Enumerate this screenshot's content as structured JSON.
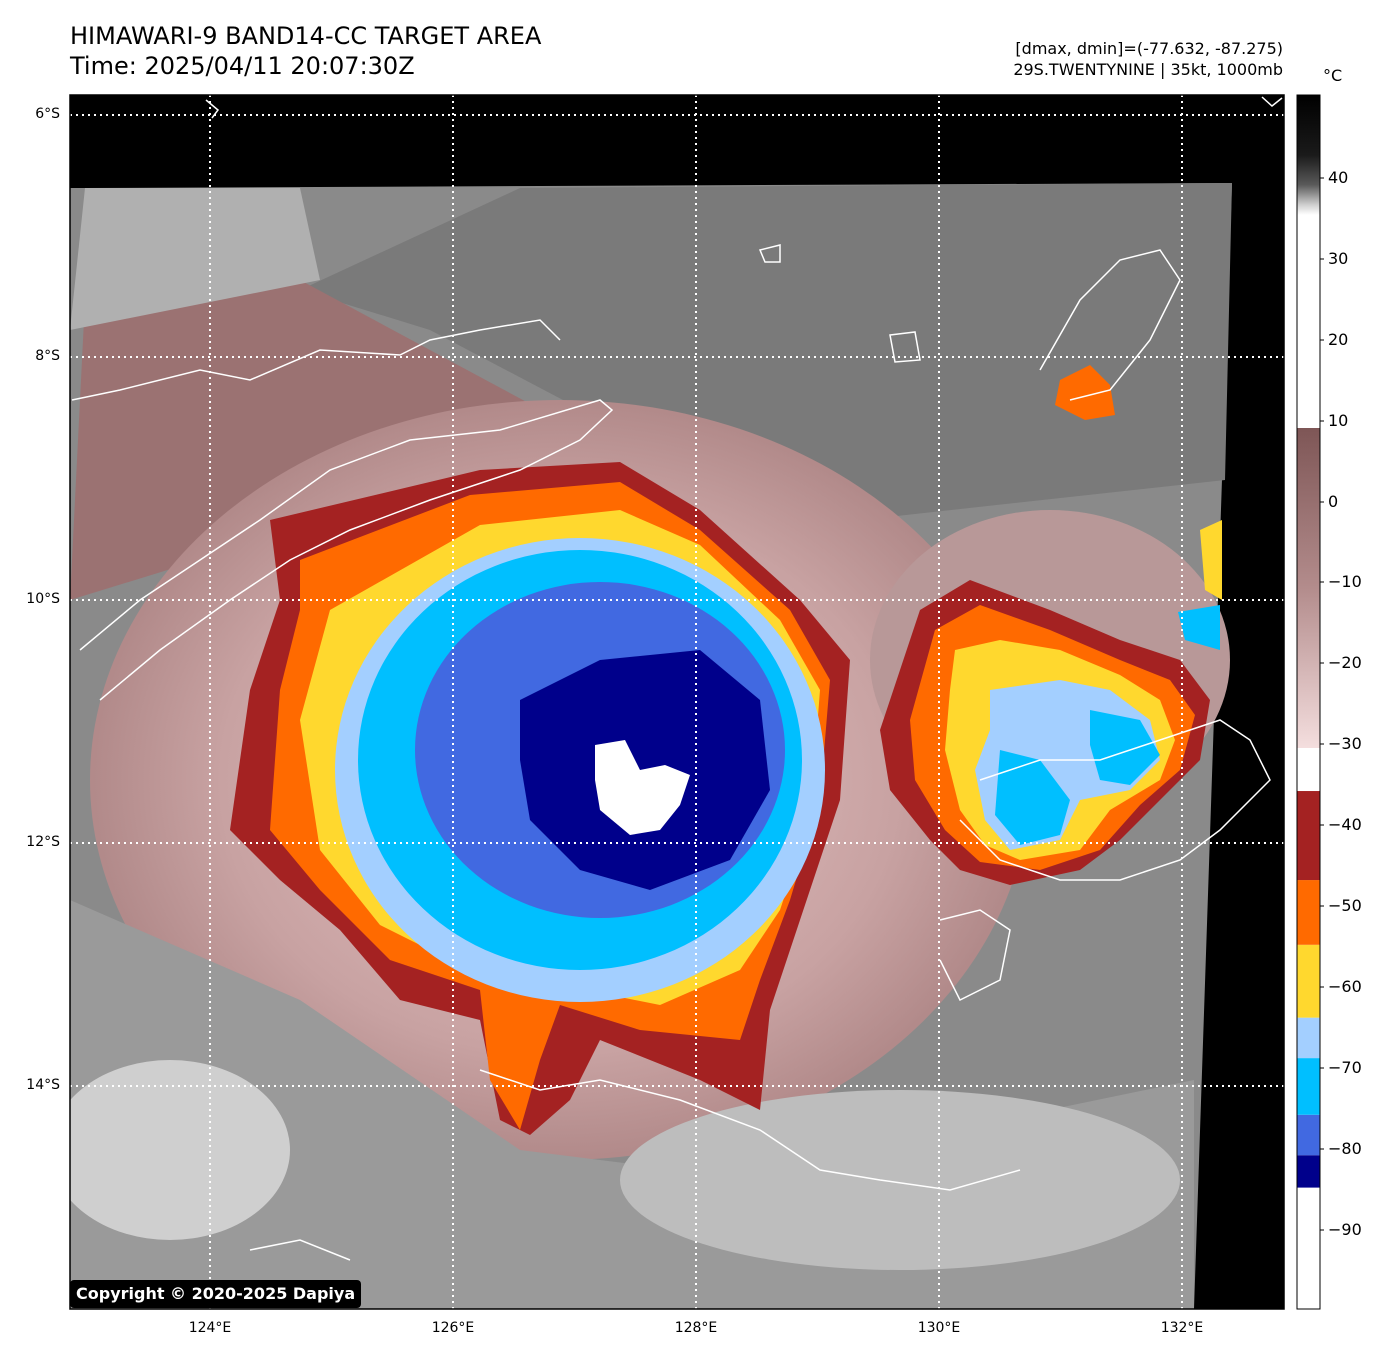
{
  "header": {
    "title_line1": "HIMAWARI-9 BAND14-CC TARGET AREA",
    "title_line2": "Time: 2025/04/11 20:07:30Z",
    "info_line1": "[dmax, dmin]=(-77.632, -87.275)",
    "info_line2": "29S.TWENTYNINE | 35kt, 1000mb"
  },
  "map": {
    "lat_labels": [
      "6°S",
      "8°S",
      "10°S",
      "12°S",
      "14°S"
    ],
    "lon_labels": [
      "124°E",
      "126°E",
      "128°E",
      "130°E",
      "132°E"
    ],
    "center_lon": 127.5,
    "center_lat": -11.4,
    "secondary_storm_lon": 130.9,
    "secondary_storm_lat": -11.5
  },
  "colorbar": {
    "unit": "°C",
    "tick_labels": [
      "40",
      "30",
      "20",
      "10",
      "0",
      "−10",
      "−20",
      "−30",
      "−40",
      "−50",
      "−60",
      "−70",
      "−80",
      "−90"
    ],
    "range": [
      -100,
      50
    ],
    "bands": [
      {
        "from": -100,
        "to": -85,
        "color": "#ffffff"
      },
      {
        "from": -85,
        "to": -81,
        "color": "#00008b"
      },
      {
        "from": -81,
        "to": -76,
        "color": "#4169e1"
      },
      {
        "from": -76,
        "to": -69,
        "color": "#00bfff"
      },
      {
        "from": -69,
        "to": -64,
        "color": "#a3cfff"
      },
      {
        "from": -64,
        "to": -55,
        "color": "#ffd82e"
      },
      {
        "from": -55,
        "to": -47,
        "color": "#ff6a00"
      },
      {
        "from": -47,
        "to": -36,
        "color": "#a42222"
      }
    ]
  },
  "copyright": "Copyright © 2020-2025 Dapiya"
}
